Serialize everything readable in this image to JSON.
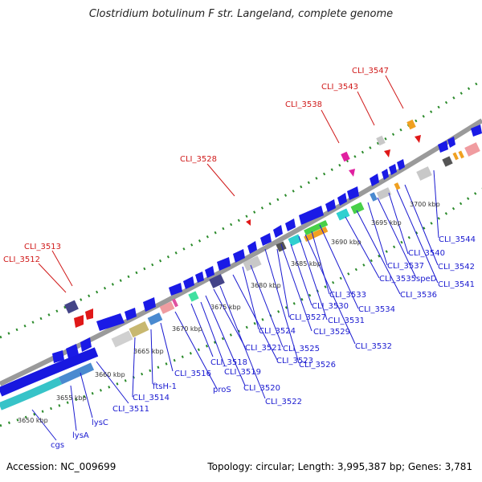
{
  "title": "Clostridium botulinum F str. Langeland, complete genome",
  "footer": {
    "accession": "Accession: NC_009699",
    "summary": "Topology: circular; Length: 3,995,387 bp; Genes: 3,781"
  },
  "colors": {
    "backbone": "#999999",
    "forward_gene": "#1a1ae6",
    "rrna_cyan": "#3cc8cc",
    "label_blue": "#1a1ad0",
    "label_red": "#d01a1a",
    "dots": "#2a8a2a"
  },
  "ticks": [
    "3650 kbp",
    "3655 kbp",
    "3660 kbp",
    "3665 kbp",
    "3670 kbp",
    "3675 kbp",
    "3680 kbp",
    "3685 kbp",
    "3690 kbp",
    "3695 kbp",
    "3700 kbp"
  ],
  "labels_blue": [
    "cgs",
    "lysA",
    "lysC",
    "CLI_3511",
    "CLI_3514",
    "ftsH-1",
    "CLI_3516",
    "proS",
    "CLI_3518",
    "CLI_3519",
    "CLI_3520",
    "CLI_3521",
    "CLI_3522",
    "CLI_3523",
    "CLI_3524",
    "CLI_3525",
    "CLI_3526",
    "CLI_3527",
    "CLI_3529",
    "CLI_3530",
    "CLI_3531",
    "CLI_3532",
    "CLI_3533",
    "CLI_3534",
    "CLI_3535",
    "CLI_3536",
    "CLI_3537",
    "speD",
    "CLI_3540",
    "CLI_3541",
    "CLI_3542",
    "CLI_3544"
  ],
  "labels_red": [
    "CLI_3512",
    "CLI_3513",
    "CLI_3528",
    "CLI_3538",
    "CLI_3543",
    "CLI_3547"
  ]
}
